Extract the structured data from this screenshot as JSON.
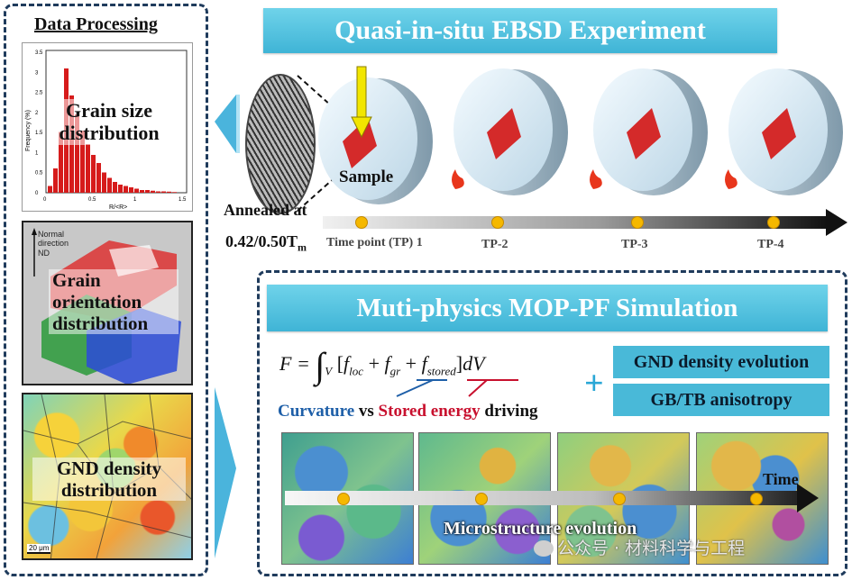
{
  "left_panel": {
    "title": "Data Processing",
    "histogram": {
      "ylabel": "Frequency (%)",
      "xlabel": "R/<R>",
      "yticks": [
        "0",
        "0.5",
        "1",
        "1.5",
        "2",
        "2.5",
        "3",
        "3.5"
      ],
      "xticks": [
        "0",
        "0.5",
        "1",
        "1.5"
      ],
      "label": "Grain size distribution"
    },
    "orientation": {
      "axis_label_1": "Normal",
      "axis_label_2": "direction",
      "axis_label_3": "ND",
      "label_1": "Grain",
      "label_2": "orientation",
      "label_3": "distribution"
    },
    "gnd": {
      "label_1": "GND density",
      "label_2": "distribution",
      "scale_bar": "20 μm"
    }
  },
  "top_section": {
    "title": "Quasi-in-situ EBSD Experiment",
    "sample_label": "Sample",
    "annealed_label": "Annealed at",
    "temperature": "0.42/0.50T",
    "temperature_sub": "m",
    "time_points": [
      "Time point (TP) 1",
      "TP-2",
      "TP-3",
      "TP-4"
    ]
  },
  "bottom_section": {
    "title": "Muti-physics MOP-PF Simulation",
    "equation": {
      "lhs": "F =",
      "integrand": "[f",
      "loc": "loc",
      "gr": "gr",
      "stored": "stored",
      "tail": "]dV",
      "sub_v": "V"
    },
    "curvature": "Curvature",
    "vs": " vs ",
    "stored_energy": "Stored energy",
    "driving": " driving",
    "plus": "+",
    "box_1": "GND density evolution",
    "box_2": "GB/TB anisotropy",
    "microstructure_label": "Microstructure evolution",
    "time_label": "Time"
  },
  "watermark": "公众号 · 材料科学与工程",
  "colors": {
    "banner": "#4bbcdc",
    "dash": "#1f3b5c",
    "sample_red": "#d42a2a",
    "dot": "#f5b800",
    "curvature": "#1e5fa8",
    "stored": "#c8102e"
  }
}
